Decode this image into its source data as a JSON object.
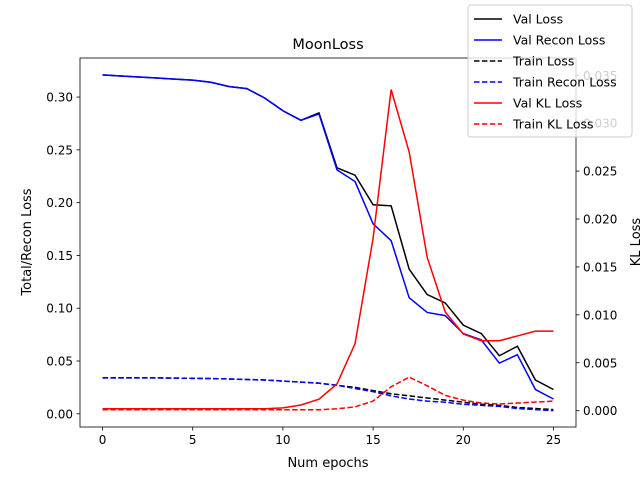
{
  "chart_data": {
    "type": "line",
    "title": "MoonLoss",
    "xlabel": "Num epochs",
    "ylabel": "Total/Recon Loss",
    "y2label": "KL Loss",
    "xlim": [
      -1.25,
      26.25
    ],
    "ylim": [
      -0.0125,
      0.337
    ],
    "y2lim": [
      -0.0017,
      0.0368
    ],
    "xticks": [
      0,
      5,
      10,
      15,
      20,
      25
    ],
    "yticks": [
      0.0,
      0.05,
      0.1,
      0.15,
      0.2,
      0.25,
      0.3
    ],
    "y2ticks": [
      0.0,
      0.005,
      0.01,
      0.015,
      0.02,
      0.025,
      0.03,
      0.035
    ],
    "xtick_labels": [
      "0",
      "5",
      "10",
      "15",
      "20",
      "25"
    ],
    "ytick_labels": [
      "0.00",
      "0.05",
      "0.10",
      "0.15",
      "0.20",
      "0.25",
      "0.30"
    ],
    "y2tick_labels": [
      "0.000",
      "0.005",
      "0.010",
      "0.015",
      "0.020",
      "0.025",
      "0.030",
      "0.035"
    ],
    "grid": false,
    "legend_position": "top-right",
    "x": [
      0,
      1,
      2,
      3,
      4,
      5,
      6,
      7,
      8,
      9,
      10,
      11,
      12,
      13,
      14,
      15,
      16,
      17,
      18,
      19,
      20,
      21,
      22,
      23,
      24,
      25
    ],
    "series": [
      {
        "name": "Val Loss",
        "color": "#000000",
        "dash": "solid",
        "axis": "left",
        "values": [
          0.321,
          0.32,
          0.319,
          0.318,
          0.317,
          0.316,
          0.314,
          0.31,
          0.308,
          0.299,
          0.287,
          0.278,
          0.285,
          0.233,
          0.226,
          0.198,
          0.197,
          0.137,
          0.113,
          0.105,
          0.084,
          0.076,
          0.055,
          0.064,
          0.032,
          0.023
        ]
      },
      {
        "name": "Val Recon Loss",
        "color": "#0000ff",
        "dash": "solid",
        "axis": "left",
        "values": [
          0.321,
          0.32,
          0.319,
          0.318,
          0.317,
          0.316,
          0.314,
          0.31,
          0.308,
          0.299,
          0.287,
          0.278,
          0.284,
          0.231,
          0.22,
          0.18,
          0.164,
          0.11,
          0.096,
          0.093,
          0.076,
          0.07,
          0.048,
          0.056,
          0.023,
          0.014
        ]
      },
      {
        "name": "Train Loss",
        "color": "#000000",
        "dash": "dashed",
        "axis": "left",
        "values": [
          0.034,
          0.034,
          0.034,
          0.034,
          0.0338,
          0.0336,
          0.0334,
          0.033,
          0.0325,
          0.032,
          0.031,
          0.03,
          0.029,
          0.027,
          0.025,
          0.022,
          0.019,
          0.017,
          0.015,
          0.013,
          0.011,
          0.009,
          0.008,
          0.006,
          0.005,
          0.004
        ]
      },
      {
        "name": "Train Recon Loss",
        "color": "#0000ff",
        "dash": "dashed",
        "axis": "left",
        "values": [
          0.034,
          0.034,
          0.034,
          0.034,
          0.0338,
          0.0336,
          0.0334,
          0.033,
          0.0325,
          0.032,
          0.031,
          0.03,
          0.029,
          0.027,
          0.024,
          0.021,
          0.017,
          0.014,
          0.012,
          0.011,
          0.009,
          0.008,
          0.007,
          0.005,
          0.004,
          0.003
        ]
      },
      {
        "name": "Val KL Loss",
        "color": "#ff0000",
        "dash": "solid",
        "axis": "right",
        "values": [
          0.0002,
          0.0002,
          0.0002,
          0.0002,
          0.0002,
          0.0002,
          0.0002,
          0.0002,
          0.0002,
          0.0002,
          0.0003,
          0.0006,
          0.0012,
          0.0028,
          0.007,
          0.018,
          0.0335,
          0.027,
          0.016,
          0.0103,
          0.008,
          0.0073,
          0.0073,
          0.0078,
          0.0083,
          0.0083
        ]
      },
      {
        "name": "Train KL Loss",
        "color": "#ff0000",
        "dash": "dashed",
        "axis": "right",
        "values": [
          0.0001,
          0.0001,
          0.0001,
          0.0001,
          0.0001,
          0.0001,
          0.0001,
          0.0001,
          0.0001,
          0.0001,
          0.0001,
          0.0001,
          0.0001,
          0.0002,
          0.0004,
          0.001,
          0.0025,
          0.0035,
          0.0026,
          0.0016,
          0.0011,
          0.0008,
          0.0007,
          0.0008,
          0.0009,
          0.001
        ]
      }
    ]
  }
}
